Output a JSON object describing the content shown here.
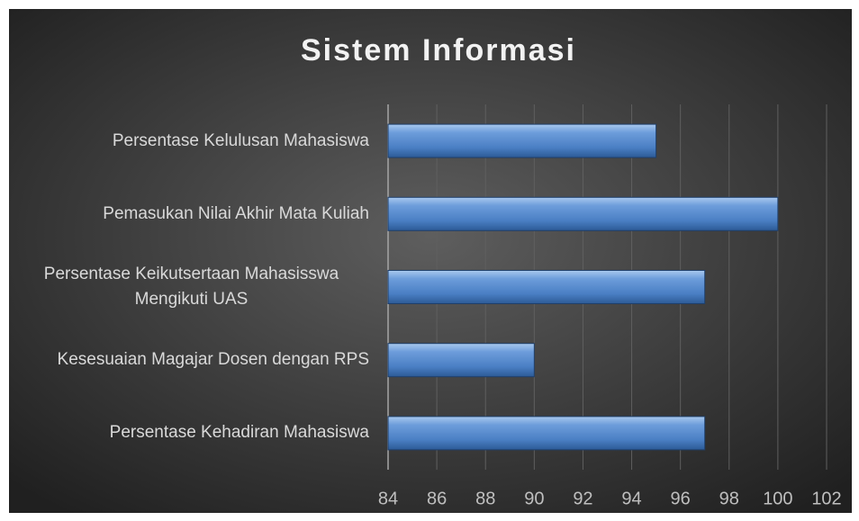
{
  "chart_data": {
    "type": "bar",
    "orientation": "horizontal",
    "title": "Sistem Informasi",
    "categories": [
      "Persentase Kelulusan Mahasiswa",
      "Pemasukan Nilai Akhir Mata Kuliah",
      "Persentase Keikutsertaan Mahasisswa Mengikuti UAS",
      "Kesesuaian Magajar Dosen dengan RPS",
      "Persentase Kehadiran Mahasiswa"
    ],
    "values": [
      95,
      100,
      97,
      90,
      97
    ],
    "color": "#4f81bd",
    "xlim": [
      84,
      102
    ],
    "xticks": [
      84,
      86,
      88,
      90,
      92,
      94,
      96,
      98,
      100,
      102
    ],
    "grid": true
  }
}
